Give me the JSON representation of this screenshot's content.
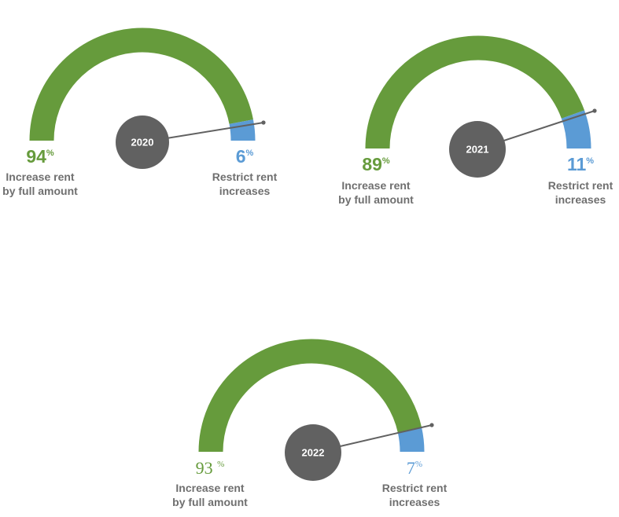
{
  "colors": {
    "increase": "#669b3c",
    "restrict": "#5b9bd5",
    "hub": "#616161",
    "needle": "#616161",
    "label": "#6f6f6f"
  },
  "chart_data": [
    {
      "type": "gauge",
      "title": "2020",
      "series": [
        {
          "name": "Increase rent by full amount",
          "value": 94,
          "label_lines": [
            "Increase rent",
            "by full amount"
          ],
          "value_label": "94",
          "unit": "%"
        },
        {
          "name": "Restrict rent increases",
          "value": 6,
          "label_lines": [
            "Restrict rent",
            "increases"
          ],
          "value_label": "6",
          "unit": "%"
        }
      ]
    },
    {
      "type": "gauge",
      "title": "2021",
      "series": [
        {
          "name": "Increase rent by full amount",
          "value": 89,
          "label_lines": [
            "Increase rent",
            "by full amount"
          ],
          "value_label": "89",
          "unit": "%"
        },
        {
          "name": "Restrict rent increases",
          "value": 11,
          "label_lines": [
            "Restrict rent",
            "increases"
          ],
          "value_label": "11",
          "unit": "%"
        }
      ]
    },
    {
      "type": "gauge",
      "title": "2022",
      "series": [
        {
          "name": "Increase rent by full amount",
          "value": 93,
          "label_lines": [
            "Increase rent",
            "by full amount"
          ],
          "value_label": "93 ",
          "unit": "%"
        },
        {
          "name": "Restrict rent increases",
          "value": 7,
          "label_lines": [
            "Restrict rent",
            "increases"
          ],
          "value_label": "7",
          "unit": "%"
        }
      ]
    }
  ]
}
